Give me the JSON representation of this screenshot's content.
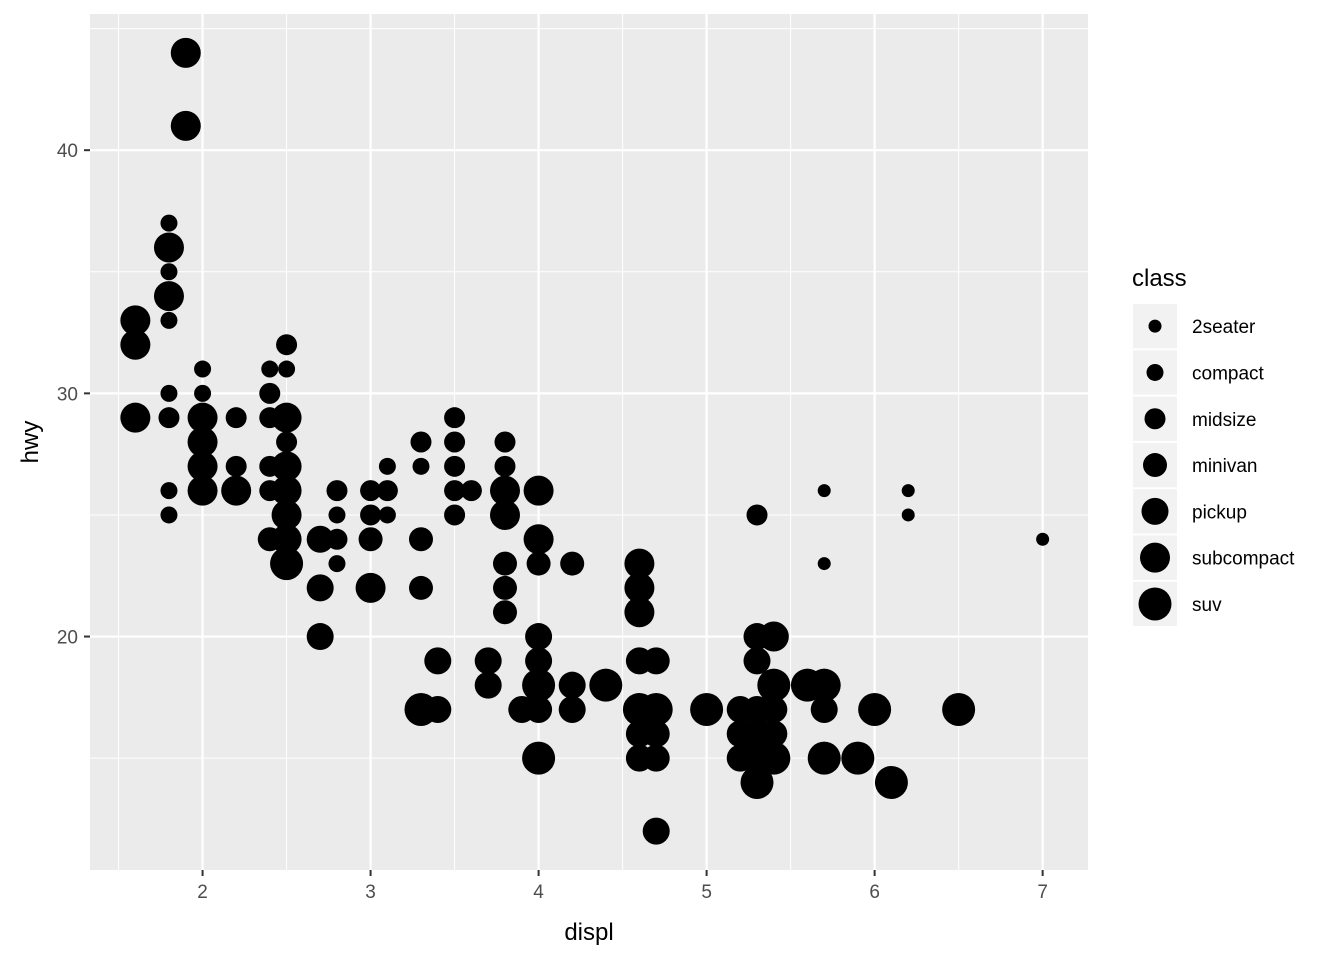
{
  "chart_data": {
    "type": "scatter",
    "xlabel": "displ",
    "ylabel": "hwy",
    "xlim": [
      1.33,
      7.27
    ],
    "ylim": [
      10.4,
      45.6
    ],
    "x_ticks": [
      2,
      3,
      4,
      5,
      6,
      7
    ],
    "y_ticks": [
      20,
      30,
      40
    ],
    "grid": true,
    "legend": {
      "title": "class",
      "position": "right",
      "encoding": "size"
    },
    "classes": [
      "2seater",
      "compact",
      "midsize",
      "minivan",
      "pickup",
      "subcompact",
      "suv"
    ],
    "point_color": "#000000",
    "panel_color": "#ebebeb",
    "grid_color": "#ffffff",
    "points": [
      {
        "x": 5.7,
        "y": 26,
        "class": "2seater"
      },
      {
        "x": 5.7,
        "y": 23,
        "class": "2seater"
      },
      {
        "x": 6.2,
        "y": 26,
        "class": "2seater"
      },
      {
        "x": 6.2,
        "y": 25,
        "class": "2seater"
      },
      {
        "x": 7.0,
        "y": 24,
        "class": "2seater"
      },
      {
        "x": 1.8,
        "y": 37,
        "class": "compact"
      },
      {
        "x": 1.8,
        "y": 35,
        "class": "compact"
      },
      {
        "x": 1.8,
        "y": 33,
        "class": "compact"
      },
      {
        "x": 1.8,
        "y": 30,
        "class": "compact"
      },
      {
        "x": 1.8,
        "y": 26,
        "class": "compact"
      },
      {
        "x": 1.8,
        "y": 25,
        "class": "compact"
      },
      {
        "x": 2.0,
        "y": 31,
        "class": "compact"
      },
      {
        "x": 2.0,
        "y": 30,
        "class": "compact"
      },
      {
        "x": 2.4,
        "y": 31,
        "class": "compact"
      },
      {
        "x": 2.5,
        "y": 31,
        "class": "compact"
      },
      {
        "x": 2.8,
        "y": 25,
        "class": "compact"
      },
      {
        "x": 2.8,
        "y": 23,
        "class": "compact"
      },
      {
        "x": 3.1,
        "y": 27,
        "class": "compact"
      },
      {
        "x": 3.1,
        "y": 25,
        "class": "compact"
      },
      {
        "x": 3.3,
        "y": 27,
        "class": "compact"
      },
      {
        "x": 1.8,
        "y": 29,
        "class": "midsize"
      },
      {
        "x": 2.2,
        "y": 29,
        "class": "midsize"
      },
      {
        "x": 2.2,
        "y": 27,
        "class": "midsize"
      },
      {
        "x": 2.4,
        "y": 30,
        "class": "midsize"
      },
      {
        "x": 2.4,
        "y": 29,
        "class": "midsize"
      },
      {
        "x": 2.4,
        "y": 27,
        "class": "midsize"
      },
      {
        "x": 2.4,
        "y": 26,
        "class": "midsize"
      },
      {
        "x": 2.5,
        "y": 32,
        "class": "midsize"
      },
      {
        "x": 2.5,
        "y": 28,
        "class": "midsize"
      },
      {
        "x": 2.5,
        "y": 26,
        "class": "midsize"
      },
      {
        "x": 2.8,
        "y": 26,
        "class": "midsize"
      },
      {
        "x": 2.8,
        "y": 24,
        "class": "midsize"
      },
      {
        "x": 3.0,
        "y": 26,
        "class": "midsize"
      },
      {
        "x": 3.0,
        "y": 25,
        "class": "midsize"
      },
      {
        "x": 3.1,
        "y": 26,
        "class": "midsize"
      },
      {
        "x": 3.3,
        "y": 28,
        "class": "midsize"
      },
      {
        "x": 3.5,
        "y": 29,
        "class": "midsize"
      },
      {
        "x": 3.5,
        "y": 28,
        "class": "midsize"
      },
      {
        "x": 3.5,
        "y": 27,
        "class": "midsize"
      },
      {
        "x": 3.5,
        "y": 26,
        "class": "midsize"
      },
      {
        "x": 3.5,
        "y": 25,
        "class": "midsize"
      },
      {
        "x": 3.6,
        "y": 26,
        "class": "midsize"
      },
      {
        "x": 3.8,
        "y": 28,
        "class": "midsize"
      },
      {
        "x": 3.8,
        "y": 27,
        "class": "midsize"
      },
      {
        "x": 5.3,
        "y": 25,
        "class": "midsize"
      },
      {
        "x": 2.4,
        "y": 24,
        "class": "minivan"
      },
      {
        "x": 3.0,
        "y": 24,
        "class": "minivan"
      },
      {
        "x": 3.3,
        "y": 24,
        "class": "minivan"
      },
      {
        "x": 3.3,
        "y": 22,
        "class": "minivan"
      },
      {
        "x": 3.8,
        "y": 23,
        "class": "minivan"
      },
      {
        "x": 3.8,
        "y": 22,
        "class": "minivan"
      },
      {
        "x": 3.8,
        "y": 21,
        "class": "minivan"
      },
      {
        "x": 4.0,
        "y": 23,
        "class": "minivan"
      },
      {
        "x": 4.2,
        "y": 23,
        "class": "minivan"
      },
      {
        "x": 2.7,
        "y": 24,
        "class": "pickup"
      },
      {
        "x": 2.7,
        "y": 22,
        "class": "pickup"
      },
      {
        "x": 2.7,
        "y": 20,
        "class": "pickup"
      },
      {
        "x": 3.4,
        "y": 19,
        "class": "pickup"
      },
      {
        "x": 3.4,
        "y": 17,
        "class": "pickup"
      },
      {
        "x": 3.7,
        "y": 19,
        "class": "pickup"
      },
      {
        "x": 3.7,
        "y": 18,
        "class": "pickup"
      },
      {
        "x": 3.9,
        "y": 17,
        "class": "pickup"
      },
      {
        "x": 4.0,
        "y": 20,
        "class": "pickup"
      },
      {
        "x": 4.0,
        "y": 19,
        "class": "pickup"
      },
      {
        "x": 4.0,
        "y": 17,
        "class": "pickup"
      },
      {
        "x": 4.2,
        "y": 18,
        "class": "pickup"
      },
      {
        "x": 4.2,
        "y": 17,
        "class": "pickup"
      },
      {
        "x": 4.6,
        "y": 19,
        "class": "pickup"
      },
      {
        "x": 4.6,
        "y": 17,
        "class": "pickup"
      },
      {
        "x": 4.6,
        "y": 16,
        "class": "pickup"
      },
      {
        "x": 4.6,
        "y": 15,
        "class": "pickup"
      },
      {
        "x": 4.7,
        "y": 19,
        "class": "pickup"
      },
      {
        "x": 4.7,
        "y": 17,
        "class": "pickup"
      },
      {
        "x": 4.7,
        "y": 16,
        "class": "pickup"
      },
      {
        "x": 4.7,
        "y": 15,
        "class": "pickup"
      },
      {
        "x": 4.7,
        "y": 12,
        "class": "pickup"
      },
      {
        "x": 5.2,
        "y": 17,
        "class": "pickup"
      },
      {
        "x": 5.2,
        "y": 16,
        "class": "pickup"
      },
      {
        "x": 5.2,
        "y": 15,
        "class": "pickup"
      },
      {
        "x": 5.3,
        "y": 20,
        "class": "pickup"
      },
      {
        "x": 5.3,
        "y": 19,
        "class": "pickup"
      },
      {
        "x": 5.3,
        "y": 17,
        "class": "pickup"
      },
      {
        "x": 5.3,
        "y": 15,
        "class": "pickup"
      },
      {
        "x": 5.4,
        "y": 17,
        "class": "pickup"
      },
      {
        "x": 5.4,
        "y": 16,
        "class": "pickup"
      },
      {
        "x": 5.7,
        "y": 17,
        "class": "pickup"
      },
      {
        "x": 1.6,
        "y": 33,
        "class": "subcompact"
      },
      {
        "x": 1.6,
        "y": 32,
        "class": "subcompact"
      },
      {
        "x": 1.6,
        "y": 29,
        "class": "subcompact"
      },
      {
        "x": 1.8,
        "y": 36,
        "class": "subcompact"
      },
      {
        "x": 1.8,
        "y": 34,
        "class": "subcompact"
      },
      {
        "x": 1.9,
        "y": 44,
        "class": "subcompact"
      },
      {
        "x": 1.9,
        "y": 41,
        "class": "subcompact"
      },
      {
        "x": 2.0,
        "y": 29,
        "class": "subcompact"
      },
      {
        "x": 2.0,
        "y": 28,
        "class": "subcompact"
      },
      {
        "x": 2.0,
        "y": 27,
        "class": "subcompact"
      },
      {
        "x": 2.0,
        "y": 26,
        "class": "subcompact"
      },
      {
        "x": 2.2,
        "y": 26,
        "class": "subcompact"
      },
      {
        "x": 2.5,
        "y": 29,
        "class": "subcompact"
      },
      {
        "x": 2.5,
        "y": 27,
        "class": "subcompact"
      },
      {
        "x": 2.5,
        "y": 26,
        "class": "subcompact"
      },
      {
        "x": 2.5,
        "y": 25,
        "class": "subcompact"
      },
      {
        "x": 2.5,
        "y": 24,
        "class": "subcompact"
      },
      {
        "x": 3.0,
        "y": 22,
        "class": "subcompact"
      },
      {
        "x": 3.8,
        "y": 26,
        "class": "subcompact"
      },
      {
        "x": 3.8,
        "y": 25,
        "class": "subcompact"
      },
      {
        "x": 4.0,
        "y": 26,
        "class": "subcompact"
      },
      {
        "x": 4.0,
        "y": 24,
        "class": "subcompact"
      },
      {
        "x": 4.6,
        "y": 23,
        "class": "subcompact"
      },
      {
        "x": 4.6,
        "y": 22,
        "class": "subcompact"
      },
      {
        "x": 4.6,
        "y": 21,
        "class": "subcompact"
      },
      {
        "x": 5.4,
        "y": 20,
        "class": "subcompact"
      },
      {
        "x": 2.5,
        "y": 23,
        "class": "suv"
      },
      {
        "x": 3.3,
        "y": 17,
        "class": "suv"
      },
      {
        "x": 4.0,
        "y": 18,
        "class": "suv"
      },
      {
        "x": 4.0,
        "y": 15,
        "class": "suv"
      },
      {
        "x": 4.4,
        "y": 18,
        "class": "suv"
      },
      {
        "x": 4.6,
        "y": 17,
        "class": "suv"
      },
      {
        "x": 4.7,
        "y": 17,
        "class": "suv"
      },
      {
        "x": 5.0,
        "y": 17,
        "class": "suv"
      },
      {
        "x": 5.3,
        "y": 16,
        "class": "suv"
      },
      {
        "x": 5.3,
        "y": 14,
        "class": "suv"
      },
      {
        "x": 5.4,
        "y": 18,
        "class": "suv"
      },
      {
        "x": 5.4,
        "y": 15,
        "class": "suv"
      },
      {
        "x": 5.6,
        "y": 18,
        "class": "suv"
      },
      {
        "x": 5.7,
        "y": 18,
        "class": "suv"
      },
      {
        "x": 5.7,
        "y": 15,
        "class": "suv"
      },
      {
        "x": 5.9,
        "y": 15,
        "class": "suv"
      },
      {
        "x": 6.0,
        "y": 17,
        "class": "suv"
      },
      {
        "x": 6.1,
        "y": 14,
        "class": "suv"
      },
      {
        "x": 6.5,
        "y": 17,
        "class": "suv"
      }
    ]
  }
}
